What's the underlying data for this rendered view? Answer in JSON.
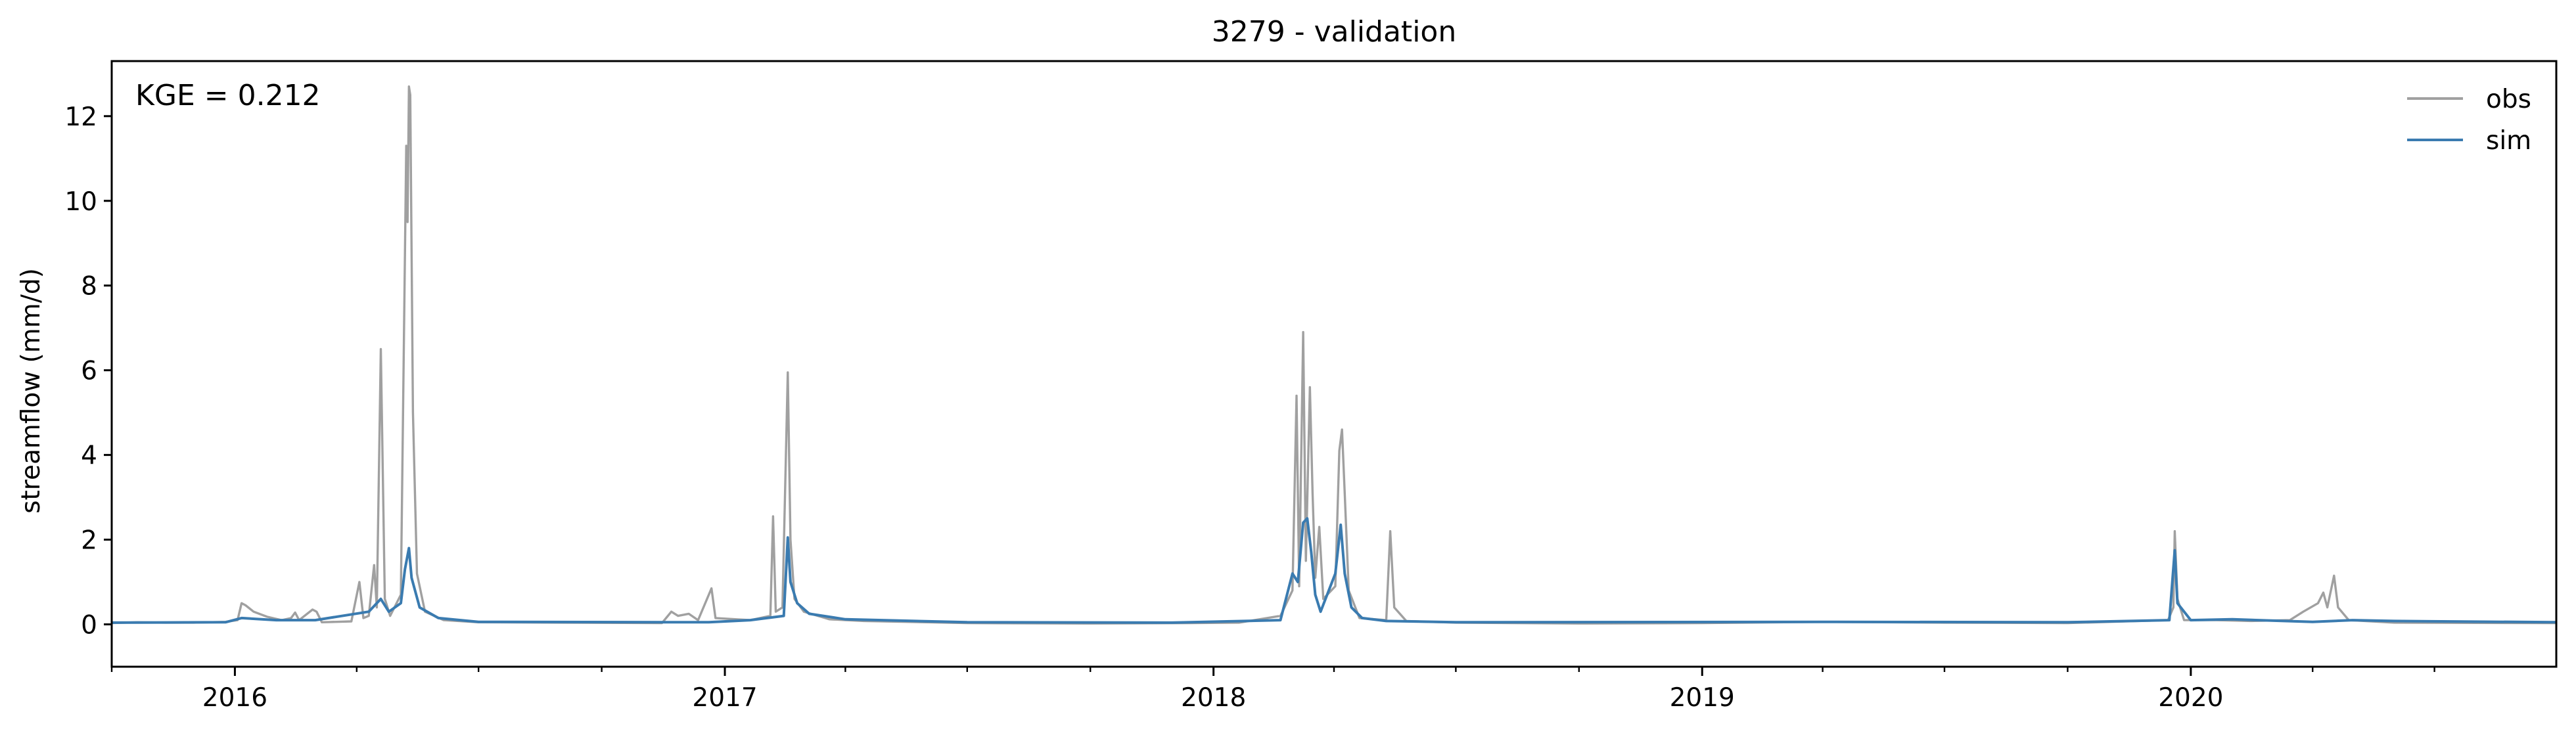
{
  "chart_data": {
    "type": "line",
    "title": "3279 - validation",
    "xlabel": "",
    "ylabel": "streamflow (mm/d)",
    "annotation": "KGE = 0.212",
    "legend_position": "top-right",
    "grid": false,
    "xlim": [
      "2015-10-01",
      "2020-09-30"
    ],
    "ylim": [
      -1,
      13.3
    ],
    "y_ticks": [
      0,
      2,
      4,
      6,
      8,
      10,
      12
    ],
    "x_ticks": [
      {
        "label": "2016",
        "date": "2016-01-01"
      },
      {
        "label": "2017",
        "date": "2017-01-01"
      },
      {
        "label": "2018",
        "date": "2018-01-01"
      },
      {
        "label": "2019",
        "date": "2019-01-01"
      },
      {
        "label": "2020",
        "date": "2020-01-01"
      }
    ],
    "series": [
      {
        "name": "obs",
        "color": "#a0a0a0",
        "points": [
          [
            "2015-10-01",
            0.03
          ],
          [
            "2015-10-20",
            0.05
          ],
          [
            "2015-11-10",
            0.04
          ],
          [
            "2015-12-01",
            0.04
          ],
          [
            "2015-12-25",
            0.06
          ],
          [
            "2016-01-03",
            0.1
          ],
          [
            "2016-01-06",
            0.5
          ],
          [
            "2016-01-09",
            0.45
          ],
          [
            "2016-01-15",
            0.3
          ],
          [
            "2016-01-25",
            0.18
          ],
          [
            "2016-02-05",
            0.1
          ],
          [
            "2016-02-12",
            0.15
          ],
          [
            "2016-02-15",
            0.28
          ],
          [
            "2016-02-18",
            0.1
          ],
          [
            "2016-02-28",
            0.35
          ],
          [
            "2016-03-02",
            0.3
          ],
          [
            "2016-03-06",
            0.05
          ],
          [
            "2016-03-28",
            0.07
          ],
          [
            "2016-04-03",
            1.0
          ],
          [
            "2016-04-06",
            0.15
          ],
          [
            "2016-04-10",
            0.2
          ],
          [
            "2016-04-14",
            1.4
          ],
          [
            "2016-04-16",
            0.4
          ],
          [
            "2016-04-19",
            6.5
          ],
          [
            "2016-04-22",
            0.6
          ],
          [
            "2016-04-26",
            0.2
          ],
          [
            "2016-05-04",
            0.7
          ],
          [
            "2016-05-08",
            11.3
          ],
          [
            "2016-05-09",
            9.5
          ],
          [
            "2016-05-10",
            12.7
          ],
          [
            "2016-05-11",
            12.5
          ],
          [
            "2016-05-13",
            5.0
          ],
          [
            "2016-05-16",
            1.2
          ],
          [
            "2016-05-22",
            0.3
          ],
          [
            "2016-06-05",
            0.1
          ],
          [
            "2016-07-01",
            0.05
          ],
          [
            "2016-09-01",
            0.04
          ],
          [
            "2016-11-15",
            0.03
          ],
          [
            "2016-11-22",
            0.3
          ],
          [
            "2016-11-27",
            0.2
          ],
          [
            "2016-12-05",
            0.25
          ],
          [
            "2016-12-12",
            0.1
          ],
          [
            "2016-12-22",
            0.85
          ],
          [
            "2016-12-25",
            0.15
          ],
          [
            "2017-01-20",
            0.1
          ],
          [
            "2017-02-04",
            0.2
          ],
          [
            "2017-02-06",
            2.55
          ],
          [
            "2017-02-08",
            0.3
          ],
          [
            "2017-02-13",
            0.4
          ],
          [
            "2017-02-17",
            5.95
          ],
          [
            "2017-02-19",
            2.0
          ],
          [
            "2017-02-22",
            0.6
          ],
          [
            "2017-03-01",
            0.3
          ],
          [
            "2017-03-20",
            0.12
          ],
          [
            "2017-04-15",
            0.08
          ],
          [
            "2017-07-01",
            0.03
          ],
          [
            "2017-10-01",
            0.02
          ],
          [
            "2017-12-15",
            0.03
          ],
          [
            "2018-01-20",
            0.04
          ],
          [
            "2018-02-20",
            0.2
          ],
          [
            "2018-03-01",
            0.8
          ],
          [
            "2018-03-04",
            5.4
          ],
          [
            "2018-03-06",
            0.9
          ],
          [
            "2018-03-09",
            6.9
          ],
          [
            "2018-03-11",
            1.5
          ],
          [
            "2018-03-14",
            5.6
          ],
          [
            "2018-03-16",
            3.1
          ],
          [
            "2018-03-18",
            1.1
          ],
          [
            "2018-03-21",
            2.3
          ],
          [
            "2018-03-24",
            0.6
          ],
          [
            "2018-04-02",
            0.9
          ],
          [
            "2018-04-05",
            4.1
          ],
          [
            "2018-04-07",
            4.6
          ],
          [
            "2018-04-09",
            3.1
          ],
          [
            "2018-04-12",
            0.8
          ],
          [
            "2018-04-20",
            0.15
          ],
          [
            "2018-05-10",
            0.1
          ],
          [
            "2018-05-13",
            2.2
          ],
          [
            "2018-05-16",
            0.4
          ],
          [
            "2018-05-25",
            0.08
          ],
          [
            "2018-07-01",
            0.04
          ],
          [
            "2018-10-01",
            0.02
          ],
          [
            "2019-01-01",
            0.03
          ],
          [
            "2019-04-01",
            0.06
          ],
          [
            "2019-07-01",
            0.04
          ],
          [
            "2019-10-01",
            0.03
          ],
          [
            "2019-12-15",
            0.1
          ],
          [
            "2019-12-19",
            0.4
          ],
          [
            "2019-12-20",
            2.2
          ],
          [
            "2019-12-22",
            0.6
          ],
          [
            "2019-12-27",
            0.1
          ],
          [
            "2020-01-20",
            0.1
          ],
          [
            "2020-02-15",
            0.08
          ],
          [
            "2020-03-15",
            0.1
          ],
          [
            "2020-03-25",
            0.3
          ],
          [
            "2020-04-05",
            0.5
          ],
          [
            "2020-04-09",
            0.75
          ],
          [
            "2020-04-12",
            0.4
          ],
          [
            "2020-04-17",
            1.15
          ],
          [
            "2020-04-20",
            0.4
          ],
          [
            "2020-04-28",
            0.1
          ],
          [
            "2020-06-01",
            0.04
          ],
          [
            "2020-09-30",
            0.03
          ]
        ]
      },
      {
        "name": "sim",
        "color": "#3a7bb0",
        "points": [
          [
            "2015-10-01",
            0.04
          ],
          [
            "2015-12-25",
            0.05
          ],
          [
            "2016-01-06",
            0.15
          ],
          [
            "2016-02-01",
            0.1
          ],
          [
            "2016-03-01",
            0.1
          ],
          [
            "2016-04-10",
            0.3
          ],
          [
            "2016-04-19",
            0.6
          ],
          [
            "2016-04-25",
            0.3
          ],
          [
            "2016-05-04",
            0.5
          ],
          [
            "2016-05-07",
            1.3
          ],
          [
            "2016-05-10",
            1.8
          ],
          [
            "2016-05-12",
            1.1
          ],
          [
            "2016-05-18",
            0.4
          ],
          [
            "2016-06-01",
            0.15
          ],
          [
            "2016-07-01",
            0.06
          ],
          [
            "2016-12-20",
            0.05
          ],
          [
            "2017-01-20",
            0.1
          ],
          [
            "2017-02-14",
            0.2
          ],
          [
            "2017-02-17",
            2.05
          ],
          [
            "2017-02-19",
            1.0
          ],
          [
            "2017-02-24",
            0.5
          ],
          [
            "2017-03-05",
            0.25
          ],
          [
            "2017-04-01",
            0.12
          ],
          [
            "2017-07-01",
            0.05
          ],
          [
            "2017-12-01",
            0.04
          ],
          [
            "2018-02-20",
            0.1
          ],
          [
            "2018-03-01",
            1.2
          ],
          [
            "2018-03-05",
            1.0
          ],
          [
            "2018-03-09",
            2.4
          ],
          [
            "2018-03-12",
            2.5
          ],
          [
            "2018-03-15",
            1.7
          ],
          [
            "2018-03-18",
            0.7
          ],
          [
            "2018-03-22",
            0.3
          ],
          [
            "2018-04-02",
            1.2
          ],
          [
            "2018-04-06",
            2.35
          ],
          [
            "2018-04-09",
            1.2
          ],
          [
            "2018-04-14",
            0.4
          ],
          [
            "2018-04-22",
            0.15
          ],
          [
            "2018-05-10",
            0.08
          ],
          [
            "2018-07-01",
            0.05
          ],
          [
            "2019-04-01",
            0.06
          ],
          [
            "2019-10-01",
            0.05
          ],
          [
            "2019-12-16",
            0.1
          ],
          [
            "2019-12-20",
            1.75
          ],
          [
            "2019-12-22",
            0.5
          ],
          [
            "2020-01-01",
            0.1
          ],
          [
            "2020-02-01",
            0.12
          ],
          [
            "2020-04-01",
            0.06
          ],
          [
            "2020-05-01",
            0.1
          ],
          [
            "2020-06-01",
            0.08
          ],
          [
            "2020-09-30",
            0.05
          ]
        ]
      }
    ]
  }
}
